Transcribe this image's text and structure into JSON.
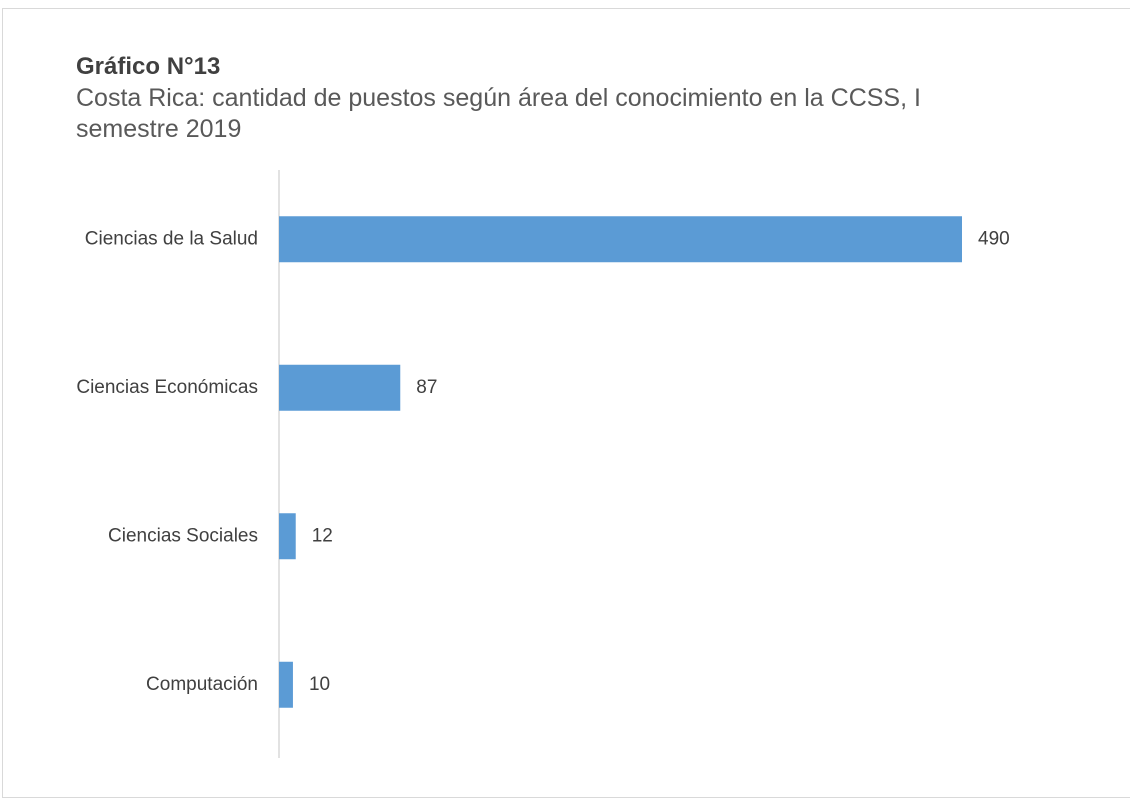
{
  "chart_data": {
    "type": "bar",
    "orientation": "horizontal",
    "title": "Gráfico N°13",
    "subtitle": "Costa Rica: cantidad de puestos según área del conocimiento en la CCSS, I semestre 2019",
    "categories": [
      "Ciencias de la Salud",
      "Ciencias Económicas",
      "Ciencias Sociales",
      "Computación"
    ],
    "values": [
      490,
      87,
      12,
      10
    ],
    "color": "#5b9bd5"
  }
}
